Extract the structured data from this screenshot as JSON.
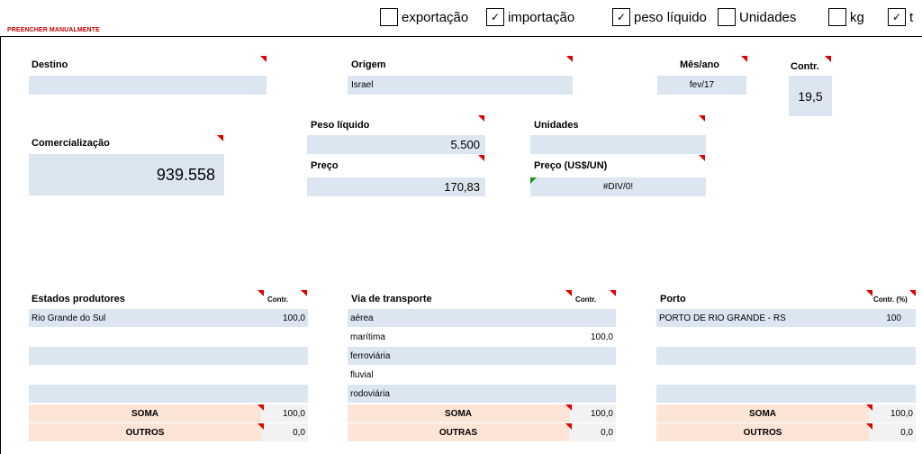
{
  "checkboxes": {
    "exportacao": {
      "label": "exportação",
      "checked": ""
    },
    "importacao": {
      "label": "importação",
      "checked": "✓"
    },
    "peso_liquido": {
      "label": "peso líquido",
      "checked": "✓"
    },
    "unidades": {
      "label": "Unidades",
      "checked": ""
    },
    "kg": {
      "label": "kg",
      "checked": ""
    },
    "t": {
      "label": "t",
      "checked": "✓"
    }
  },
  "manual_note": "PREENCHER MANUALMENTE",
  "fields": {
    "destino": {
      "label": "Destino",
      "value": ""
    },
    "origem": {
      "label": "Origem",
      "value": "Israel"
    },
    "mes_ano": {
      "label": "Mês/ano",
      "value": "fev/17"
    },
    "contr": {
      "label": "Contr.",
      "value": "19,5"
    },
    "comercializacao": {
      "label": "Comercialização",
      "value": "939.558"
    },
    "peso_liquido": {
      "label": "Peso líquido",
      "value": "5.500"
    },
    "unidades": {
      "label": "Unidades",
      "value": ""
    },
    "preco": {
      "label": "Preço",
      "value": "170,83"
    },
    "preco_usd": {
      "label": "Preço (US$/UN)",
      "value": "#DIV/0!"
    }
  },
  "estados": {
    "title": "Estados produtores",
    "contr_label": "Contr.",
    "rows": [
      {
        "name": "Rio Grande do Sul",
        "value": "100,0"
      },
      {
        "name": "",
        "value": ""
      },
      {
        "name": "",
        "value": ""
      },
      {
        "name": "",
        "value": ""
      },
      {
        "name": "",
        "value": ""
      }
    ],
    "soma_label": "SOMA",
    "soma_value": "100,0",
    "outros_label": "OUTROS",
    "outros_value": "0,0"
  },
  "via": {
    "title": "Via de transporte",
    "contr_label": "Contr.",
    "rows": [
      {
        "name": "aérea",
        "value": ""
      },
      {
        "name": "marítima",
        "value": "100,0"
      },
      {
        "name": "ferroviária",
        "value": ""
      },
      {
        "name": "fluvial",
        "value": ""
      },
      {
        "name": "rodoviária",
        "value": ""
      }
    ],
    "soma_label": "SOMA",
    "soma_value": "100,0",
    "outros_label": "OUTRAS",
    "outros_value": "0,0"
  },
  "porto": {
    "title": "Porto",
    "contr_label": "Contr. (%)",
    "rows": [
      {
        "name": "PORTO DE RIO GRANDE - RS",
        "value": "100"
      },
      {
        "name": "",
        "value": ""
      },
      {
        "name": "",
        "value": ""
      },
      {
        "name": "",
        "value": ""
      },
      {
        "name": "",
        "value": ""
      }
    ],
    "soma_label": "SOMA",
    "soma_value": "100,0",
    "outros_label": "OUTROS",
    "outros_value": "0,0"
  }
}
